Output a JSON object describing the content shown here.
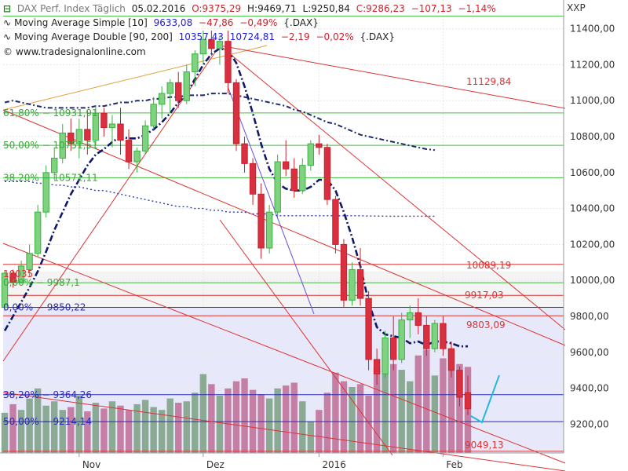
{
  "chart_data": {
    "type": "candlestick",
    "title": "DAX Perf. Index Täglich",
    "date": "05.02.2016",
    "ohlc": {
      "open": "O:9375,29",
      "high": "H:9469,71",
      "low": "L:9250,84",
      "close": "C:9286,23",
      "change": "−107,13",
      "change_pct": "−1,14%"
    },
    "indicator1": {
      "label": "Moving Average Simple [10]",
      "value": "9633,08",
      "change": "−47,86",
      "pct": "−0,49%",
      "ref": "{.DAX}"
    },
    "indicator2": {
      "label": "Moving Average Double [90, 200]",
      "v1": "10357,43",
      "v2": "10724,81",
      "change": "−2,19",
      "pct": "−0,02%",
      "ref": "{.DAX}"
    },
    "website": "www.tradesignalonline.com",
    "y_unit": "XXP",
    "ylim": [
      9040,
      11560
    ],
    "y_ticks": [
      "11400,00",
      "11200,00",
      "11000,00",
      "10800,00",
      "10600,00",
      "10400,00",
      "10200,00",
      "10000,00",
      "9800,00",
      "9600,00",
      "9400,00",
      "9200,00"
    ],
    "y_tick_values": [
      11400,
      11200,
      11000,
      10800,
      10600,
      10400,
      10200,
      10000,
      9800,
      9600,
      9400,
      9200
    ],
    "x_ticks": [
      "Nov",
      "Dez",
      "2016",
      "Feb"
    ],
    "x_tick_index": [
      9,
      24,
      38,
      53
    ],
    "fib_green": [
      {
        "label": "61,80% − 10931,91",
        "value": 10931.91
      },
      {
        "label": "50,00% − 10751,51",
        "value": 10751.51
      },
      {
        "label": "38,20% − 10571,11",
        "value": 10571.11
      },
      {
        "label": "0,00% − 9987,1",
        "value": 9987.1
      }
    ],
    "fib_blue": [
      {
        "label": "0,00% − 9850,22",
        "value": 9850.22
      },
      {
        "label": "38,20% − 9364,26",
        "value": 9364.26
      },
      {
        "label": "50,00% − 9214,14",
        "value": 9214.14
      }
    ],
    "levels_red": [
      {
        "label": "11129,84",
        "value": 11129.84
      },
      {
        "label": "10089,19",
        "value": 10089.19
      },
      {
        "label": "9917,03",
        "value": 9917.03
      },
      {
        "label": "9803,09",
        "value": 9803.09
      },
      {
        "label": "9049,13",
        "value": 9049.13
      }
    ],
    "fragment_label": "10035",
    "candles": [
      [
        9850,
        10050,
        9830,
        10040
      ],
      [
        10040,
        10060,
        9960,
        9990
      ],
      [
        9990,
        10110,
        9980,
        10080
      ],
      [
        10060,
        10200,
        10020,
        10150
      ],
      [
        10150,
        10420,
        10130,
        10380
      ],
      [
        10380,
        10640,
        10350,
        10600
      ],
      [
        10600,
        10740,
        10560,
        10680
      ],
      [
        10680,
        10870,
        10650,
        10820
      ],
      [
        10820,
        10900,
        10720,
        10760
      ],
      [
        10760,
        10900,
        10680,
        10840
      ],
      [
        10840,
        10950,
        10700,
        10780
      ],
      [
        10780,
        10970,
        10750,
        10930
      ],
      [
        10930,
        10960,
        10800,
        10850
      ],
      [
        10850,
        10920,
        10740,
        10870
      ],
      [
        10870,
        10960,
        10700,
        10780
      ],
      [
        10780,
        10840,
        10620,
        10660
      ],
      [
        10660,
        10740,
        10600,
        10720
      ],
      [
        10720,
        10890,
        10700,
        10860
      ],
      [
        10860,
        11020,
        10840,
        10980
      ],
      [
        10980,
        11080,
        10900,
        11040
      ],
      [
        11040,
        11120,
        10930,
        11100
      ],
      [
        11100,
        11160,
        10960,
        11000
      ],
      [
        11000,
        11200,
        10980,
        11160
      ],
      [
        11160,
        11280,
        11080,
        11260
      ],
      [
        11260,
        11390,
        11200,
        11340
      ],
      [
        11340,
        11390,
        11250,
        11290
      ],
      [
        11290,
        11360,
        11200,
        11330
      ],
      [
        11330,
        11390,
        11040,
        11100
      ],
      [
        11100,
        11120,
        10720,
        10760
      ],
      [
        10760,
        10800,
        10600,
        10650
      ],
      [
        10650,
        10680,
        10420,
        10480
      ],
      [
        10480,
        10540,
        10120,
        10180
      ],
      [
        10180,
        10420,
        10150,
        10380
      ],
      [
        10380,
        10700,
        10350,
        10660
      ],
      [
        10660,
        10780,
        10580,
        10620
      ],
      [
        10620,
        10680,
        10460,
        10500
      ],
      [
        10500,
        10680,
        10480,
        10640
      ],
      [
        10640,
        10780,
        10610,
        10760
      ],
      [
        10760,
        10810,
        10700,
        10740
      ],
      [
        10740,
        10760,
        10420,
        10450
      ],
      [
        10450,
        10470,
        10150,
        10200
      ],
      [
        10200,
        10230,
        9850,
        9890
      ],
      [
        9890,
        10100,
        9860,
        10060
      ],
      [
        10060,
        10180,
        9860,
        9900
      ],
      [
        9900,
        9940,
        9500,
        9560
      ],
      [
        9560,
        9620,
        9420,
        9480
      ],
      [
        9480,
        9720,
        9460,
        9680
      ],
      [
        9680,
        9800,
        9500,
        9560
      ],
      [
        9560,
        9820,
        9540,
        9780
      ],
      [
        9780,
        9860,
        9680,
        9820
      ],
      [
        9820,
        9900,
        9700,
        9750
      ],
      [
        9750,
        9800,
        9580,
        9620
      ],
      [
        9620,
        9780,
        9600,
        9760
      ],
      [
        9760,
        9800,
        9580,
        9620
      ],
      [
        9620,
        9660,
        9460,
        9500
      ],
      [
        9500,
        9520,
        9300,
        9350
      ],
      [
        9375,
        9470,
        9250,
        9286
      ]
    ],
    "volume": [
      0.28,
      0.34,
      0.3,
      0.38,
      0.45,
      0.33,
      0.36,
      0.3,
      0.32,
      0.4,
      0.29,
      0.35,
      0.31,
      0.36,
      0.33,
      0.3,
      0.34,
      0.37,
      0.32,
      0.3,
      0.38,
      0.35,
      0.36,
      0.42,
      0.55,
      0.48,
      0.4,
      0.45,
      0.5,
      0.52,
      0.44,
      0.41,
      0.38,
      0.45,
      0.47,
      0.49,
      0.36,
      0.22,
      0.3,
      0.42,
      0.56,
      0.5,
      0.46,
      0.48,
      0.4,
      0.6,
      0.55,
      0.62,
      0.58,
      0.5,
      0.68,
      0.72,
      0.54,
      0.66,
      0.58,
      0.62,
      0.6
    ],
    "sma10": [
      9720,
      9800,
      9880,
      9960,
      10050,
      10160,
      10280,
      10380,
      10480,
      10560,
      10640,
      10700,
      10730,
      10770,
      10800,
      10790,
      10790,
      10810,
      10840,
      10880,
      10930,
      10990,
      11040,
      11120,
      11200,
      11260,
      11290,
      11280,
      11210,
      11080,
      10930,
      10760,
      10620,
      10540,
      10510,
      10500,
      10500,
      10520,
      10560,
      10560,
      10500,
      10380,
      10240,
      10080,
      9880,
      9740,
      9700,
      9690,
      9680,
      9650,
      9660,
      9640,
      9660,
      9660,
      9650,
      9633,
      9633
    ],
    "dma_fast": [
      10990,
      11000,
      10990,
      10980,
      10970,
      10960,
      10960,
      10960,
      10960,
      10960,
      10960,
      10970,
      10970,
      10980,
      10990,
      10990,
      11000,
      11000,
      11010,
      11010,
      11020,
      11020,
      11030,
      11030,
      11030,
      11040,
      11040,
      11040,
      11030,
      11020,
      11010,
      11000,
      10990,
      10980,
      10970,
      10950,
      10940,
      10920,
      10900,
      10880,
      10870,
      10850,
      10830,
      10810,
      10800,
      10790,
      10780,
      10770,
      10760,
      10750,
      10740,
      10730,
      10725
    ],
    "dma_slow": [
      10550,
      10550,
      10550,
      10550,
      10540,
      10540,
      10530,
      10530,
      10520,
      10520,
      10510,
      10500,
      10500,
      10490,
      10480,
      10470,
      10460,
      10450,
      10440,
      10430,
      10420,
      10410,
      10410,
      10400,
      10400,
      10390,
      10390,
      10380,
      10380,
      10380,
      10370,
      10370,
      10370,
      10360,
      10360,
      10360,
      10360,
      10360,
      10360,
      10360,
      10360,
      10360,
      10360,
      10360,
      10358,
      10358,
      10357,
      10357,
      10357,
      10357,
      10357,
      10357,
      10357
    ]
  }
}
